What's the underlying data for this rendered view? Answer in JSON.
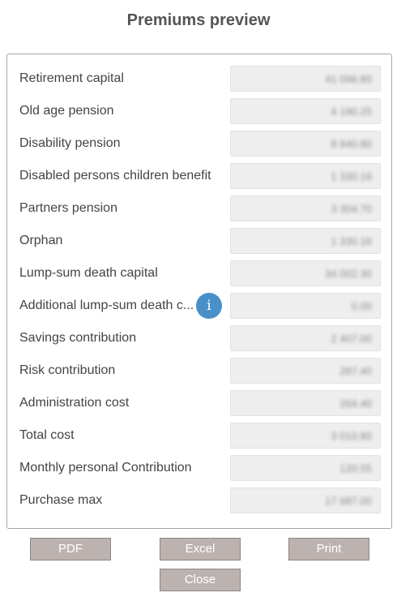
{
  "dialog": {
    "title": "Premiums preview"
  },
  "rows": [
    {
      "label": "Retirement capital",
      "value": "41 096.80"
    },
    {
      "label": "Old age pension",
      "value": "4 190.25"
    },
    {
      "label": "Disability pension",
      "value": "8 840.80"
    },
    {
      "label": "Disabled persons children benefit",
      "value": "1 330.16"
    },
    {
      "label": "Partners pension",
      "value": "3 304.70"
    },
    {
      "label": "Orphan",
      "value": "1 330.16"
    },
    {
      "label": "Lump-sum death capital",
      "value": "34 002.30"
    },
    {
      "label": "Additional lump-sum death c...",
      "value": "0.00"
    },
    {
      "label": "Savings contribution",
      "value": "2 407.00"
    },
    {
      "label": "Risk contribution",
      "value": "287.40"
    },
    {
      "label": "Administration cost",
      "value": "264.40"
    },
    {
      "label": "Total cost",
      "value": "3 010.80"
    },
    {
      "label": "Monthly personal Contribution",
      "value": "120.55"
    },
    {
      "label": "Purchase max",
      "value": "17 687.00"
    }
  ],
  "buttons": {
    "pdf": "PDF",
    "excel": "Excel",
    "print": "Print",
    "close": "Close"
  },
  "icons": {
    "info": "info-icon"
  },
  "colors": {
    "info_icon": "#4a90c8",
    "button_bg": "#bcb3b1",
    "value_bg": "#eeeeee"
  }
}
